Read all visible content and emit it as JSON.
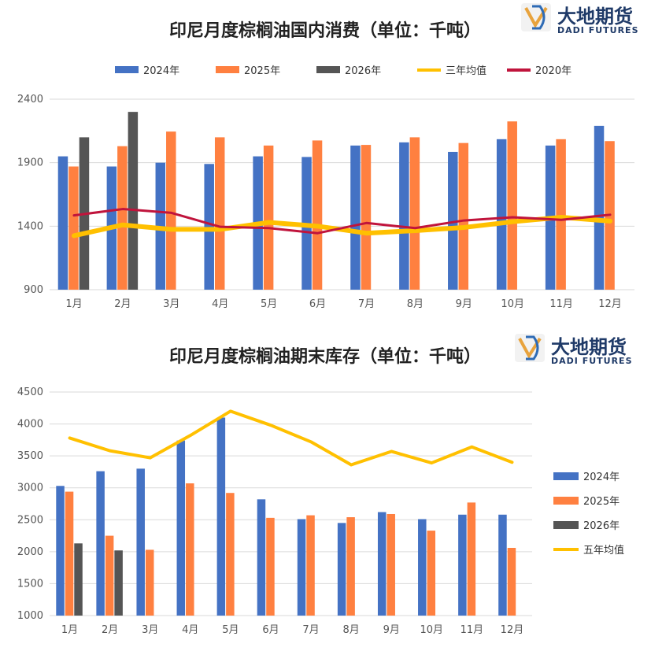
{
  "logo": {
    "cn": "大地期货",
    "en": "DADI FUTURES"
  },
  "chart_data": [
    {
      "type": "bar",
      "title": "印尼月度棕榈油国内消费（单位：千吨）",
      "categories": [
        "1月",
        "2月",
        "3月",
        "4月",
        "5月",
        "6月",
        "7月",
        "8月",
        "9月",
        "10月",
        "11月",
        "12月"
      ],
      "ylim": [
        900,
        2400
      ],
      "yticks": [
        900,
        1400,
        1900,
        2400
      ],
      "grid": true,
      "legend": "top",
      "series": [
        {
          "name": "2024年",
          "kind": "bar",
          "color": "#4472C4",
          "values": [
            1950,
            1870,
            1900,
            1890,
            1950,
            1945,
            2035,
            2060,
            1985,
            2085,
            2035,
            2190
          ]
        },
        {
          "name": "2025年",
          "kind": "bar",
          "color": "#FF8040",
          "values": [
            1870,
            2030,
            2145,
            2100,
            2035,
            2075,
            2040,
            2100,
            2055,
            2225,
            2085,
            2070
          ]
        },
        {
          "name": "2026年",
          "kind": "bar",
          "color": "#555555",
          "values": [
            2100,
            2300,
            null,
            null,
            null,
            null,
            null,
            null,
            null,
            null,
            null,
            null
          ]
        },
        {
          "name": "三年均值",
          "kind": "line",
          "color": "#FFC000",
          "width": 6,
          "values": [
            1325,
            1410,
            1375,
            1375,
            1430,
            1400,
            1345,
            1365,
            1390,
            1435,
            1470,
            1440
          ]
        },
        {
          "name": "2020年",
          "kind": "line",
          "color": "#C0143C",
          "width": 3,
          "values": [
            1485,
            1535,
            1505,
            1395,
            1385,
            1345,
            1425,
            1385,
            1445,
            1470,
            1450,
            1490
          ]
        }
      ]
    },
    {
      "type": "bar",
      "title": "印尼月度棕榈油期末库存（单位：千吨）",
      "categories": [
        "1月",
        "2月",
        "3月",
        "4月",
        "5月",
        "6月",
        "7月",
        "8月",
        "9月",
        "10月",
        "11月",
        "12月"
      ],
      "ylim": [
        1000,
        4500
      ],
      "yticks": [
        1000,
        1500,
        2000,
        2500,
        3000,
        3500,
        4000,
        4500
      ],
      "grid": true,
      "legend": "right",
      "series": [
        {
          "name": "2024年",
          "kind": "bar",
          "color": "#4472C4",
          "values": [
            3030,
            3260,
            3300,
            3740,
            4100,
            2820,
            2510,
            2450,
            2620,
            2510,
            2580,
            2580
          ]
        },
        {
          "name": "2025年",
          "kind": "bar",
          "color": "#FF8040",
          "values": [
            2940,
            2250,
            2030,
            3070,
            2920,
            2530,
            2570,
            2540,
            2590,
            2330,
            2770,
            2060
          ]
        },
        {
          "name": "2026年",
          "kind": "bar",
          "color": "#555555",
          "values": [
            2130,
            2020,
            null,
            null,
            null,
            null,
            null,
            null,
            null,
            null,
            null,
            null
          ]
        },
        {
          "name": "五年均值",
          "kind": "line",
          "color": "#FFC000",
          "width": 4,
          "values": [
            3780,
            3580,
            3470,
            3820,
            4200,
            3980,
            3720,
            3360,
            3570,
            3390,
            3640,
            3400
          ]
        }
      ]
    }
  ]
}
